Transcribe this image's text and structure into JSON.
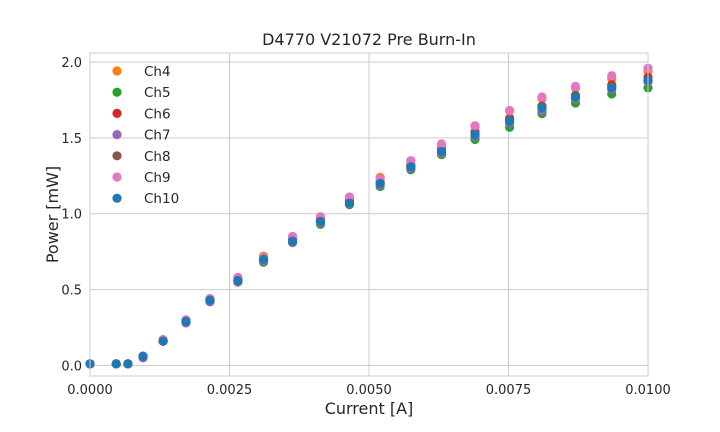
{
  "chart_data": {
    "type": "scatter",
    "title": "D4770 V21072 Pre Burn-In",
    "xlabel": "Current [A]",
    "ylabel": "Power [mW]",
    "xlim": [
      0,
      0.01
    ],
    "ylim": [
      -0.07,
      2.06
    ],
    "xticks": [
      "0.0000",
      "0.0025",
      "0.0050",
      "0.0075",
      "0.0100"
    ],
    "yticks": [
      "0.0",
      "0.5",
      "1.0",
      "1.5",
      "2.0"
    ],
    "grid": true,
    "legend_position": "upper-left",
    "x": [
      0.0,
      0.00047,
      0.00068,
      0.00095,
      0.00131,
      0.00172,
      0.00215,
      0.00265,
      0.00311,
      0.00363,
      0.00413,
      0.00465,
      0.0052,
      0.00575,
      0.0063,
      0.0069,
      0.00752,
      0.0081,
      0.0087,
      0.00935,
      0.01
    ],
    "series": [
      {
        "name": "Ch4",
        "color": "#ff7f0e",
        "values": [
          0.01,
          0.01,
          0.01,
          0.06,
          0.17,
          0.3,
          0.44,
          0.58,
          0.72,
          0.85,
          0.98,
          1.11,
          1.24,
          1.35,
          1.46,
          1.58,
          1.68,
          1.76,
          1.83,
          1.89,
          1.94
        ]
      },
      {
        "name": "Ch5",
        "color": "#2ca02c",
        "values": [
          0.01,
          0.01,
          0.01,
          0.05,
          0.16,
          0.28,
          0.42,
          0.55,
          0.68,
          0.81,
          0.93,
          1.06,
          1.18,
          1.29,
          1.39,
          1.49,
          1.57,
          1.66,
          1.73,
          1.79,
          1.83
        ]
      },
      {
        "name": "Ch6",
        "color": "#d62728",
        "values": [
          0.01,
          0.01,
          0.01,
          0.06,
          0.16,
          0.29,
          0.43,
          0.57,
          0.7,
          0.83,
          0.96,
          1.09,
          1.21,
          1.32,
          1.43,
          1.54,
          1.63,
          1.71,
          1.78,
          1.85,
          1.9
        ]
      },
      {
        "name": "Ch7",
        "color": "#9467bd",
        "values": [
          0.01,
          0.01,
          0.01,
          0.05,
          0.16,
          0.28,
          0.42,
          0.55,
          0.69,
          0.81,
          0.94,
          1.07,
          1.19,
          1.3,
          1.4,
          1.51,
          1.6,
          1.68,
          1.76,
          1.82,
          1.87
        ]
      },
      {
        "name": "Ch8",
        "color": "#8c564b",
        "values": [
          0.01,
          0.01,
          0.01,
          0.06,
          0.16,
          0.29,
          0.43,
          0.56,
          0.7,
          0.82,
          0.95,
          1.08,
          1.2,
          1.31,
          1.42,
          1.53,
          1.62,
          1.71,
          1.78,
          1.84,
          1.88
        ]
      },
      {
        "name": "Ch9",
        "color": "#e377c2",
        "values": [
          0.01,
          0.01,
          0.01,
          0.06,
          0.17,
          0.3,
          0.44,
          0.58,
          0.71,
          0.85,
          0.98,
          1.11,
          1.23,
          1.35,
          1.46,
          1.58,
          1.68,
          1.77,
          1.84,
          1.91,
          1.96
        ]
      },
      {
        "name": "Ch10",
        "color": "#1f77b4",
        "values": [
          0.01,
          0.01,
          0.01,
          0.06,
          0.16,
          0.29,
          0.43,
          0.56,
          0.7,
          0.82,
          0.95,
          1.07,
          1.2,
          1.31,
          1.41,
          1.52,
          1.61,
          1.7,
          1.77,
          1.83,
          1.88
        ]
      }
    ]
  }
}
